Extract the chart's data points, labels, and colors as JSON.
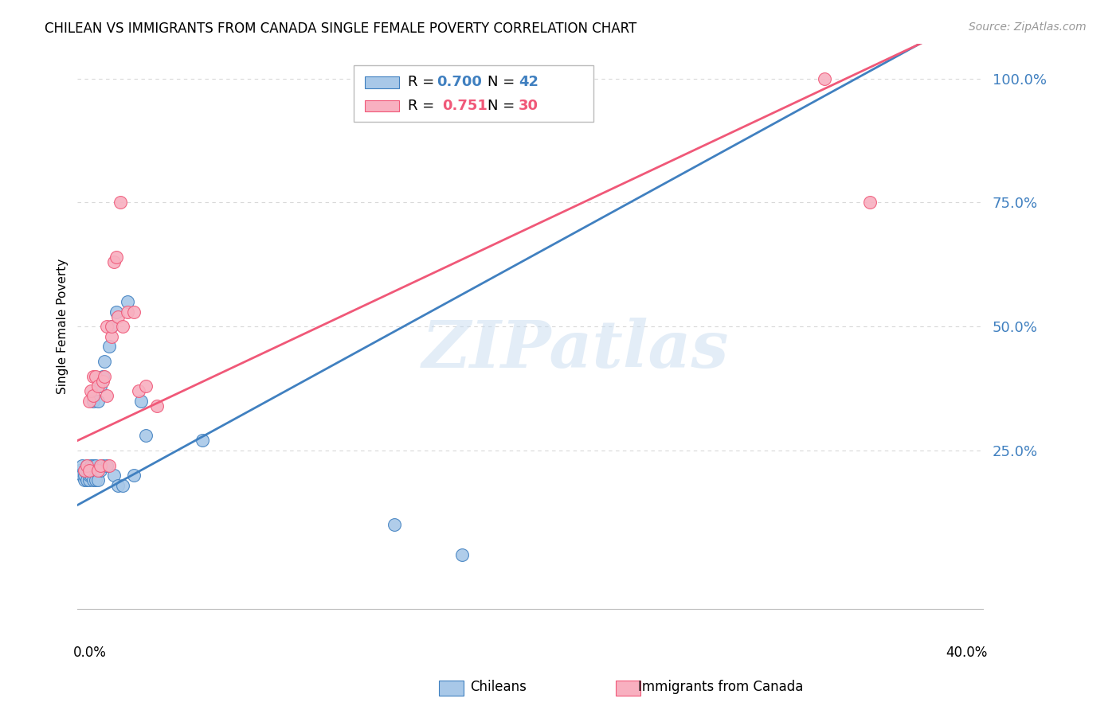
{
  "title": "CHILEAN VS IMMIGRANTS FROM CANADA SINGLE FEMALE POVERTY CORRELATION CHART",
  "source": "Source: ZipAtlas.com",
  "ylabel": "Single Female Poverty",
  "xlim": [
    0.0,
    0.4
  ],
  "ylim": [
    -0.07,
    1.07
  ],
  "yticks": [
    0.25,
    0.5,
    0.75,
    1.0
  ],
  "ytick_labels": [
    "25.0%",
    "50.0%",
    "75.0%",
    "100.0%"
  ],
  "chilean_color": "#A8C8E8",
  "canadian_color": "#F8B0C0",
  "chilean_line_color": "#4080C0",
  "canadian_line_color": "#F05878",
  "watermark_text": "ZIPatlas",
  "background_color": "#FFFFFF",
  "grid_color": "#D8D8D8",
  "chilean_x": [
    0.001,
    0.002,
    0.002,
    0.003,
    0.003,
    0.003,
    0.004,
    0.004,
    0.004,
    0.005,
    0.005,
    0.005,
    0.006,
    0.006,
    0.007,
    0.007,
    0.007,
    0.007,
    0.008,
    0.008,
    0.008,
    0.009,
    0.009,
    0.01,
    0.01,
    0.011,
    0.011,
    0.012,
    0.013,
    0.014,
    0.015,
    0.016,
    0.017,
    0.018,
    0.02,
    0.022,
    0.025,
    0.028,
    0.03,
    0.055,
    0.14,
    0.17
  ],
  "chilean_y": [
    0.21,
    0.2,
    0.22,
    0.19,
    0.2,
    0.21,
    0.19,
    0.21,
    0.22,
    0.19,
    0.2,
    0.21,
    0.2,
    0.22,
    0.19,
    0.21,
    0.22,
    0.35,
    0.19,
    0.21,
    0.22,
    0.19,
    0.35,
    0.21,
    0.38,
    0.22,
    0.4,
    0.43,
    0.22,
    0.46,
    0.5,
    0.2,
    0.53,
    0.18,
    0.18,
    0.55,
    0.2,
    0.35,
    0.28,
    0.27,
    0.1,
    0.04
  ],
  "canadian_x": [
    0.003,
    0.004,
    0.005,
    0.005,
    0.006,
    0.007,
    0.007,
    0.008,
    0.009,
    0.009,
    0.01,
    0.011,
    0.012,
    0.013,
    0.013,
    0.014,
    0.015,
    0.015,
    0.016,
    0.017,
    0.018,
    0.019,
    0.02,
    0.022,
    0.025,
    0.027,
    0.03,
    0.035,
    0.33,
    0.35
  ],
  "canadian_y": [
    0.21,
    0.22,
    0.21,
    0.35,
    0.37,
    0.36,
    0.4,
    0.4,
    0.21,
    0.38,
    0.22,
    0.39,
    0.4,
    0.36,
    0.5,
    0.22,
    0.48,
    0.5,
    0.63,
    0.64,
    0.52,
    0.75,
    0.5,
    0.53,
    0.53,
    0.37,
    0.38,
    0.34,
    1.0,
    0.75
  ],
  "chilean_reg": [
    0.0,
    2.5
  ],
  "canadian_reg": [
    0.14,
    2.3
  ],
  "note_r_chilean": "0.700",
  "note_n_chilean": "42",
  "note_r_canadian": "0.751",
  "note_n_canadian": "30"
}
